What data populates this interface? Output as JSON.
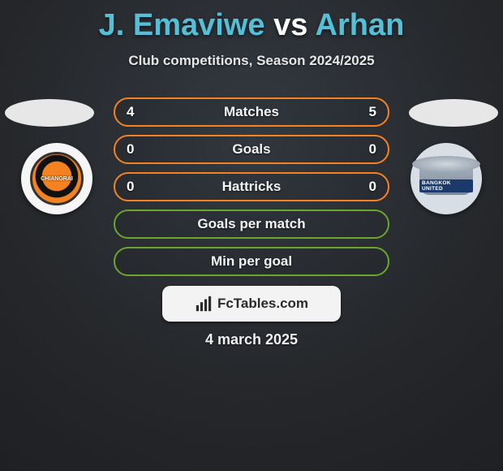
{
  "title": {
    "player1": "J. Emaviwe",
    "vs": "vs",
    "player2": "Arhan",
    "player_color": "#54c0d8",
    "vs_color": "#ffffff"
  },
  "subtitle": "Club competitions, Season 2024/2025",
  "badges": {
    "left_label": "CHIANGRAI",
    "right_label": "BANGKOK UNITED"
  },
  "stats": {
    "rows": [
      {
        "label": "Matches",
        "left": "4",
        "right": "5",
        "border": "#f58220"
      },
      {
        "label": "Goals",
        "left": "0",
        "right": "0",
        "border": "#f58220"
      },
      {
        "label": "Hattricks",
        "left": "0",
        "right": "0",
        "border": "#f58220"
      },
      {
        "label": "Goals per match",
        "left": "",
        "right": "",
        "border": "#6aa52d"
      },
      {
        "label": "Min per goal",
        "left": "",
        "right": "",
        "border": "#6aa52d"
      }
    ],
    "row_bg": "rgba(0,0,0,0.05)",
    "text_color": "#ffffff"
  },
  "footer": {
    "brand": "FcTables.com",
    "bg": "#f3f3f3",
    "fg": "#2b2b2b"
  },
  "date": "4 march 2025",
  "colors": {
    "page_bg_center": "#343a42",
    "page_bg_edge": "#1e2023",
    "ellipse": "#e7e7e7",
    "badge_left_bg": "#f6f6f6",
    "badge_right_bg": "#d8dee6"
  }
}
